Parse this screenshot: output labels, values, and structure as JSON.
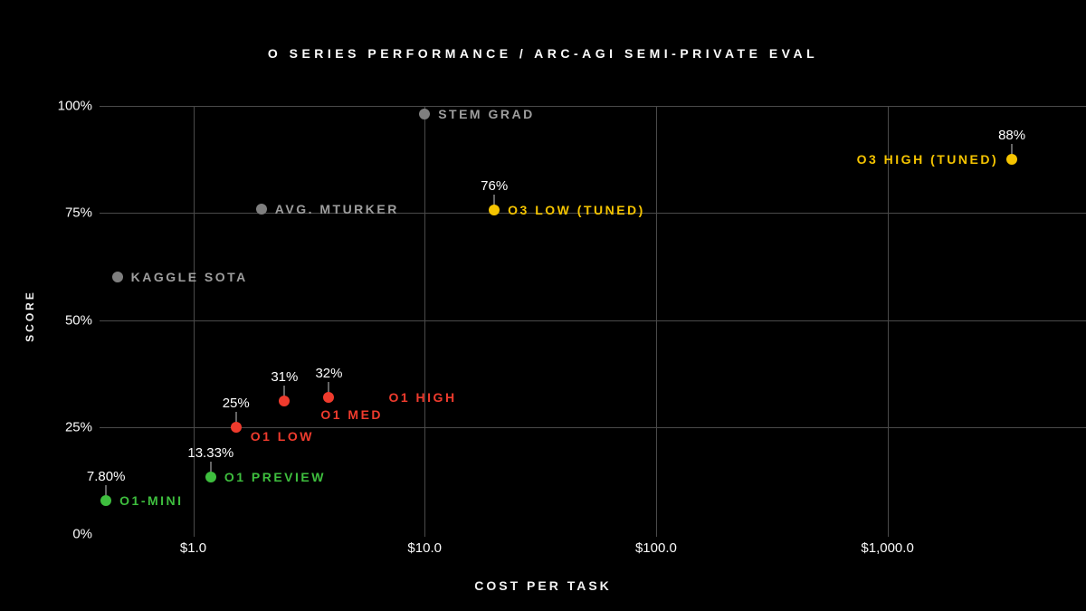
{
  "chart_data": {
    "type": "scatter",
    "title": "O SERIES PERFORMANCE / ARC-AGI SEMI-PRIVATE EVAL",
    "xlabel": "COST PER TASK",
    "ylabel": "SCORE",
    "x_scale": "log",
    "grid": true,
    "x_ticks": [
      {
        "value": 1,
        "label": "$1.0"
      },
      {
        "value": 10,
        "label": "$10.0"
      },
      {
        "value": 100,
        "label": "$100.0"
      },
      {
        "value": 1000,
        "label": "$1,000.0"
      }
    ],
    "y_ticks": [
      {
        "value": 0,
        "label": "0%"
      },
      {
        "value": 25,
        "label": "25%"
      },
      {
        "value": 50,
        "label": "50%"
      },
      {
        "value": 75,
        "label": "75%"
      },
      {
        "value": 100,
        "label": "100%"
      }
    ],
    "ylim": [
      0,
      100
    ],
    "colors": {
      "green": "#3ebe3e",
      "red": "#ef3b2d",
      "yellow": "#f5c400",
      "gray": "#7f7f7f",
      "gray_label": "#9e9e9e",
      "background": "#000000",
      "gridline": "#4a4a4a",
      "value_text": "#ffffff"
    },
    "points": [
      {
        "name": "O1-MINI",
        "cost": 0.42,
        "score": 7.8,
        "value_label": "7.80%",
        "color_key": "green",
        "label_side": "right"
      },
      {
        "name": "O1 PREVIEW",
        "cost": 1.19,
        "score": 13.33,
        "value_label": "13.33%",
        "color_key": "green",
        "label_side": "right"
      },
      {
        "name": "O1 LOW",
        "cost": 1.53,
        "score": 25,
        "value_label": "25%",
        "color_key": "red",
        "label_side": "below-right"
      },
      {
        "name": "O1 MED",
        "cost": 2.48,
        "score": 31,
        "value_label": "31%",
        "color_key": "red",
        "label_side": "below-right-far"
      },
      {
        "name": "O1 HIGH",
        "cost": 3.86,
        "score": 32,
        "value_label": "32%",
        "color_key": "red",
        "label_side": "right-far"
      },
      {
        "name": "O3 LOW (TUNED)",
        "cost": 20,
        "score": 75.7,
        "value_label": "76%",
        "color_key": "yellow",
        "label_side": "right"
      },
      {
        "name": "O3 HIGH (TUNED)",
        "cost": 3450,
        "score": 87.5,
        "value_label": "88%",
        "color_key": "yellow",
        "label_side": "left"
      },
      {
        "name": "KAGGLE SOTA",
        "cost": 0.47,
        "score": 60,
        "value_label": null,
        "color_key": "gray",
        "label_side": "right"
      },
      {
        "name": "AVG. MTURKER",
        "cost": 1.97,
        "score": 76,
        "value_label": null,
        "color_key": "gray",
        "label_side": "right"
      },
      {
        "name": "STEM GRAD",
        "cost": 10,
        "score": 98,
        "value_label": null,
        "color_key": "gray",
        "label_side": "right"
      }
    ]
  }
}
